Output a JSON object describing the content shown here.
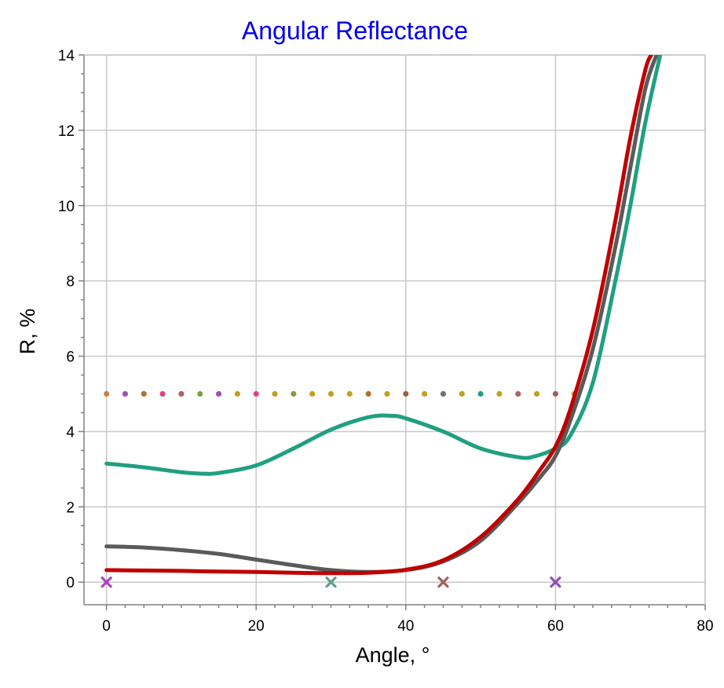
{
  "chart_data": {
    "type": "line",
    "title": "Angular Reflectance",
    "xlabel": "Angle, °",
    "ylabel": "R, %",
    "xlim": [
      -3,
      80
    ],
    "ylim": [
      -0.6,
      14
    ],
    "xticks": [
      0,
      20,
      40,
      60,
      80
    ],
    "yticks": [
      0,
      2,
      4,
      6,
      8,
      10,
      12,
      14
    ],
    "grid": true,
    "series": [
      {
        "color": "#20a080",
        "x": [
          0,
          5,
          10,
          13,
          15,
          20,
          25,
          30,
          35,
          38,
          40,
          45,
          50,
          55,
          57,
          60,
          62,
          65,
          68,
          70,
          72,
          74
        ],
        "y": [
          3.15,
          3.05,
          2.92,
          2.88,
          2.9,
          3.1,
          3.55,
          4.05,
          4.38,
          4.42,
          4.35,
          4.0,
          3.55,
          3.32,
          3.33,
          3.55,
          3.9,
          5.3,
          8.0,
          10.0,
          12.2,
          14.0
        ]
      },
      {
        "color": "#5a5a5a",
        "x": [
          0,
          5,
          10,
          15,
          20,
          25,
          30,
          35,
          40,
          45,
          50,
          55,
          58,
          60,
          62,
          65,
          68,
          70,
          72,
          73.5
        ],
        "y": [
          0.95,
          0.92,
          0.85,
          0.75,
          0.6,
          0.45,
          0.32,
          0.27,
          0.32,
          0.55,
          1.1,
          2.1,
          2.8,
          3.35,
          4.3,
          6.2,
          8.9,
          11.0,
          13.1,
          14.0
        ]
      },
      {
        "color": "#c00000",
        "x": [
          0,
          5,
          10,
          15,
          20,
          25,
          30,
          35,
          40,
          45,
          50,
          55,
          58,
          60,
          62,
          65,
          68,
          70,
          72,
          72.8
        ],
        "y": [
          0.32,
          0.31,
          0.3,
          0.28,
          0.27,
          0.25,
          0.24,
          0.25,
          0.33,
          0.58,
          1.2,
          2.2,
          3.0,
          3.6,
          4.6,
          6.7,
          9.6,
          11.8,
          13.6,
          14.0
        ]
      }
    ],
    "reference_dots": {
      "y": 5,
      "x": [
        0,
        2.5,
        5,
        7.5,
        10,
        12.5,
        15,
        17.5,
        20,
        22.5,
        25,
        27.5,
        30,
        32.5,
        35,
        37.5,
        40,
        42.5,
        45,
        47.5,
        50,
        52.5,
        55,
        57.5,
        60,
        62.5
      ],
      "colors": [
        "#d08040",
        "#a050b0",
        "#b07030",
        "#e04090",
        "#b06060",
        "#80a040",
        "#a050b0",
        "#c0a020",
        "#e04090",
        "#c0a020",
        "#80a040",
        "#c0a020",
        "#c0a020",
        "#c0a020",
        "#b07030",
        "#c0a020",
        "#a06040",
        "#c0a020",
        "#707070",
        "#c0a020",
        "#20a080",
        "#c0a020",
        "#b06060",
        "#c0a020",
        "#a06060",
        "#c0a020"
      ]
    },
    "markers": [
      {
        "x": 0,
        "y": 0,
        "color": "#b040c0"
      },
      {
        "x": 30,
        "y": 0,
        "color": "#60a090"
      },
      {
        "x": 45,
        "y": 0,
        "color": "#a06060"
      },
      {
        "x": 60,
        "y": 0,
        "color": "#9050b0"
      }
    ]
  }
}
